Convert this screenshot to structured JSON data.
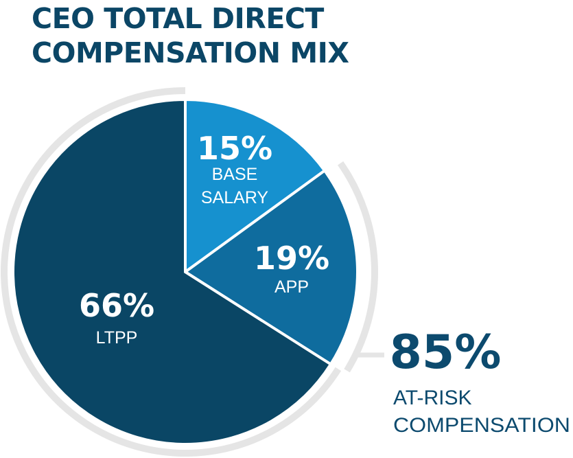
{
  "title_lines": [
    "CEO TOTAL DIRECT",
    "COMPENSATION MIX"
  ],
  "colors": {
    "title": "#0b4666",
    "ring": "#e5e5e5",
    "separator": "#ffffff",
    "at_risk_text": "#0c4a6e",
    "slice_text": "#ffffff"
  },
  "chart_data": {
    "type": "pie",
    "title": "CEO TOTAL DIRECT COMPENSATION MIX",
    "start": "12 o'clock, clockwise",
    "slices": [
      {
        "value": 15,
        "pct_label": "15%",
        "label_lines": [
          "BASE",
          "SALARY"
        ],
        "color": "#1691cf"
      },
      {
        "value": 19,
        "pct_label": "19%",
        "label_lines": [
          "APP"
        ],
        "color": "#0f6c9e"
      },
      {
        "value": 66,
        "pct_label": "66%",
        "label_lines": [
          "LTPP"
        ],
        "color": "#0a4665"
      }
    ],
    "annotation": {
      "value": 85,
      "pct_label": "85%",
      "label_lines": [
        "AT-RISK",
        "COMPENSATION"
      ],
      "covers": [
        "APP",
        "LTPP"
      ]
    }
  }
}
